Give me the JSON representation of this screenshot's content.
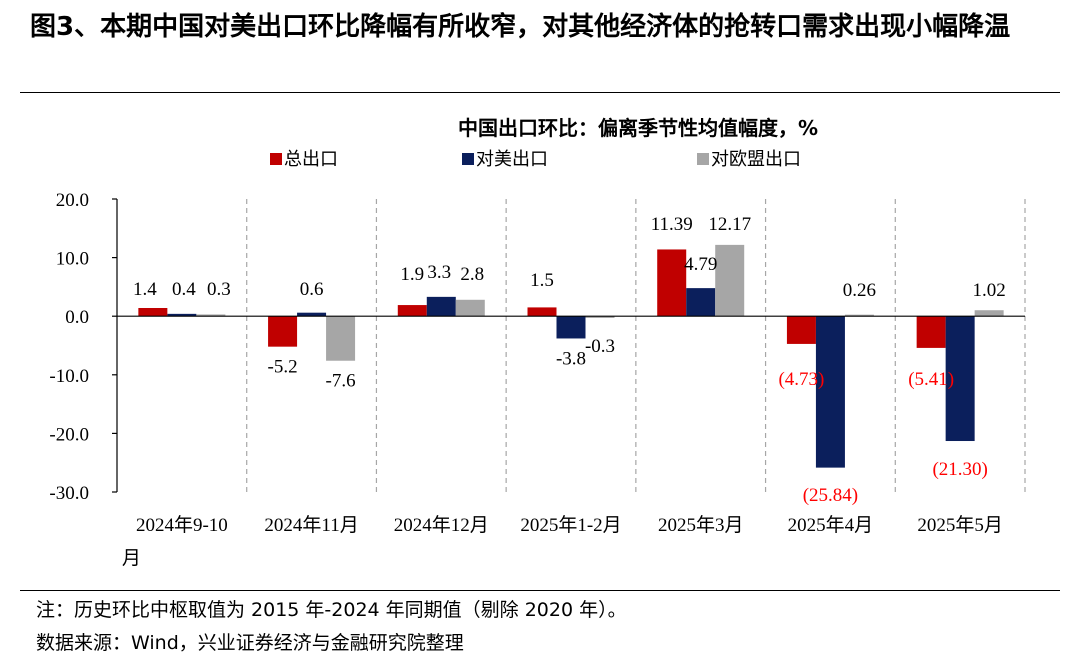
{
  "figure_title": "图3、本期中国对美出口环比降幅有所收窄，对其他经济体的抢转口需求出现小幅降温",
  "chart_data": {
    "type": "bar",
    "title": "中国出口环比：偏离季节性均值幅度，%",
    "categories": [
      "2024年9-10月",
      "2024年11月",
      "2024年12月",
      "2025年1-2月",
      "2025年3月",
      "2025年4月",
      "2025年5月"
    ],
    "series": [
      {
        "name": "总出口",
        "color": "#C00000",
        "values": [
          1.4,
          -5.2,
          1.9,
          1.5,
          11.39,
          -4.73,
          -5.41
        ],
        "labels": [
          "1.4",
          "-5.2",
          "1.9",
          "1.5",
          "11.39",
          "(4.73)",
          "(5.41)"
        ]
      },
      {
        "name": "对美出口",
        "color": "#0B1F5C",
        "values": [
          0.4,
          0.6,
          3.3,
          -3.8,
          4.79,
          -25.84,
          -21.3
        ],
        "labels": [
          "0.4",
          "0.6",
          "3.3",
          "-3.8",
          "4.79",
          "(25.84)",
          "(21.30)"
        ]
      },
      {
        "name": "对欧盟出口",
        "color": "#A6A6A6",
        "values": [
          0.3,
          -7.6,
          2.8,
          -0.3,
          12.17,
          0.26,
          1.02
        ],
        "labels": [
          "0.3",
          "-7.6",
          "2.8",
          "-0.3",
          "12.17",
          "0.26",
          "1.02"
        ]
      }
    ],
    "ylim": [
      -30,
      20
    ],
    "yticks": [
      20,
      10,
      0,
      -10,
      -20,
      -30
    ],
    "ytick_labels": [
      "20.0",
      "10.0",
      "0.0",
      "-10.0",
      "-20.0",
      "-30.0"
    ],
    "negative_label_color": "#FF0000",
    "legend_position": "top",
    "grid": "vertical dashed separators"
  },
  "notes": {
    "note": "注：历史环比中枢取值为 2015 年-2024 年同期值（剔除 2020 年）。",
    "source": "数据来源：Wind，兴业证券经济与金融研究院整理"
  }
}
